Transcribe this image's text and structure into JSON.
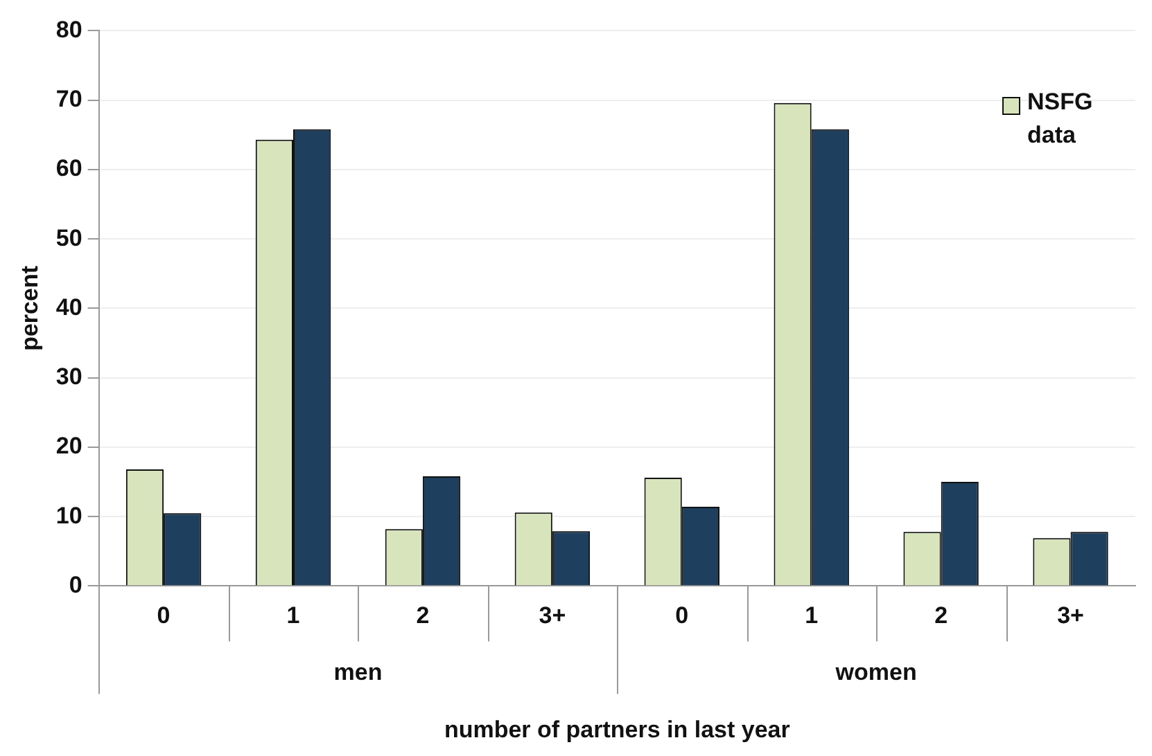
{
  "chart_data": {
    "type": "bar",
    "xlabel": "number of partners in last year",
    "ylabel": "percent",
    "categories": [
      "0",
      "1",
      "2",
      "3+",
      "0",
      "1",
      "2",
      "3+"
    ],
    "series": [
      {
        "name": "NSFG data",
        "color": "#d7e4bc",
        "values": [
          16.8,
          64.3,
          8.2,
          10.6,
          15.6,
          69.6,
          7.8,
          6.9
        ]
      },
      {
        "color": "#1f3f5f",
        "values": [
          10.5,
          65.8,
          15.8,
          7.9,
          11.4,
          65.8,
          15.0,
          7.8
        ]
      }
    ],
    "annotations": [
      "men",
      "women"
    ],
    "ylim": [
      0,
      80
    ],
    "yticks": [
      0,
      10,
      20,
      30,
      40,
      50,
      60,
      70,
      80
    ],
    "grid": "y",
    "legend": "top right"
  }
}
